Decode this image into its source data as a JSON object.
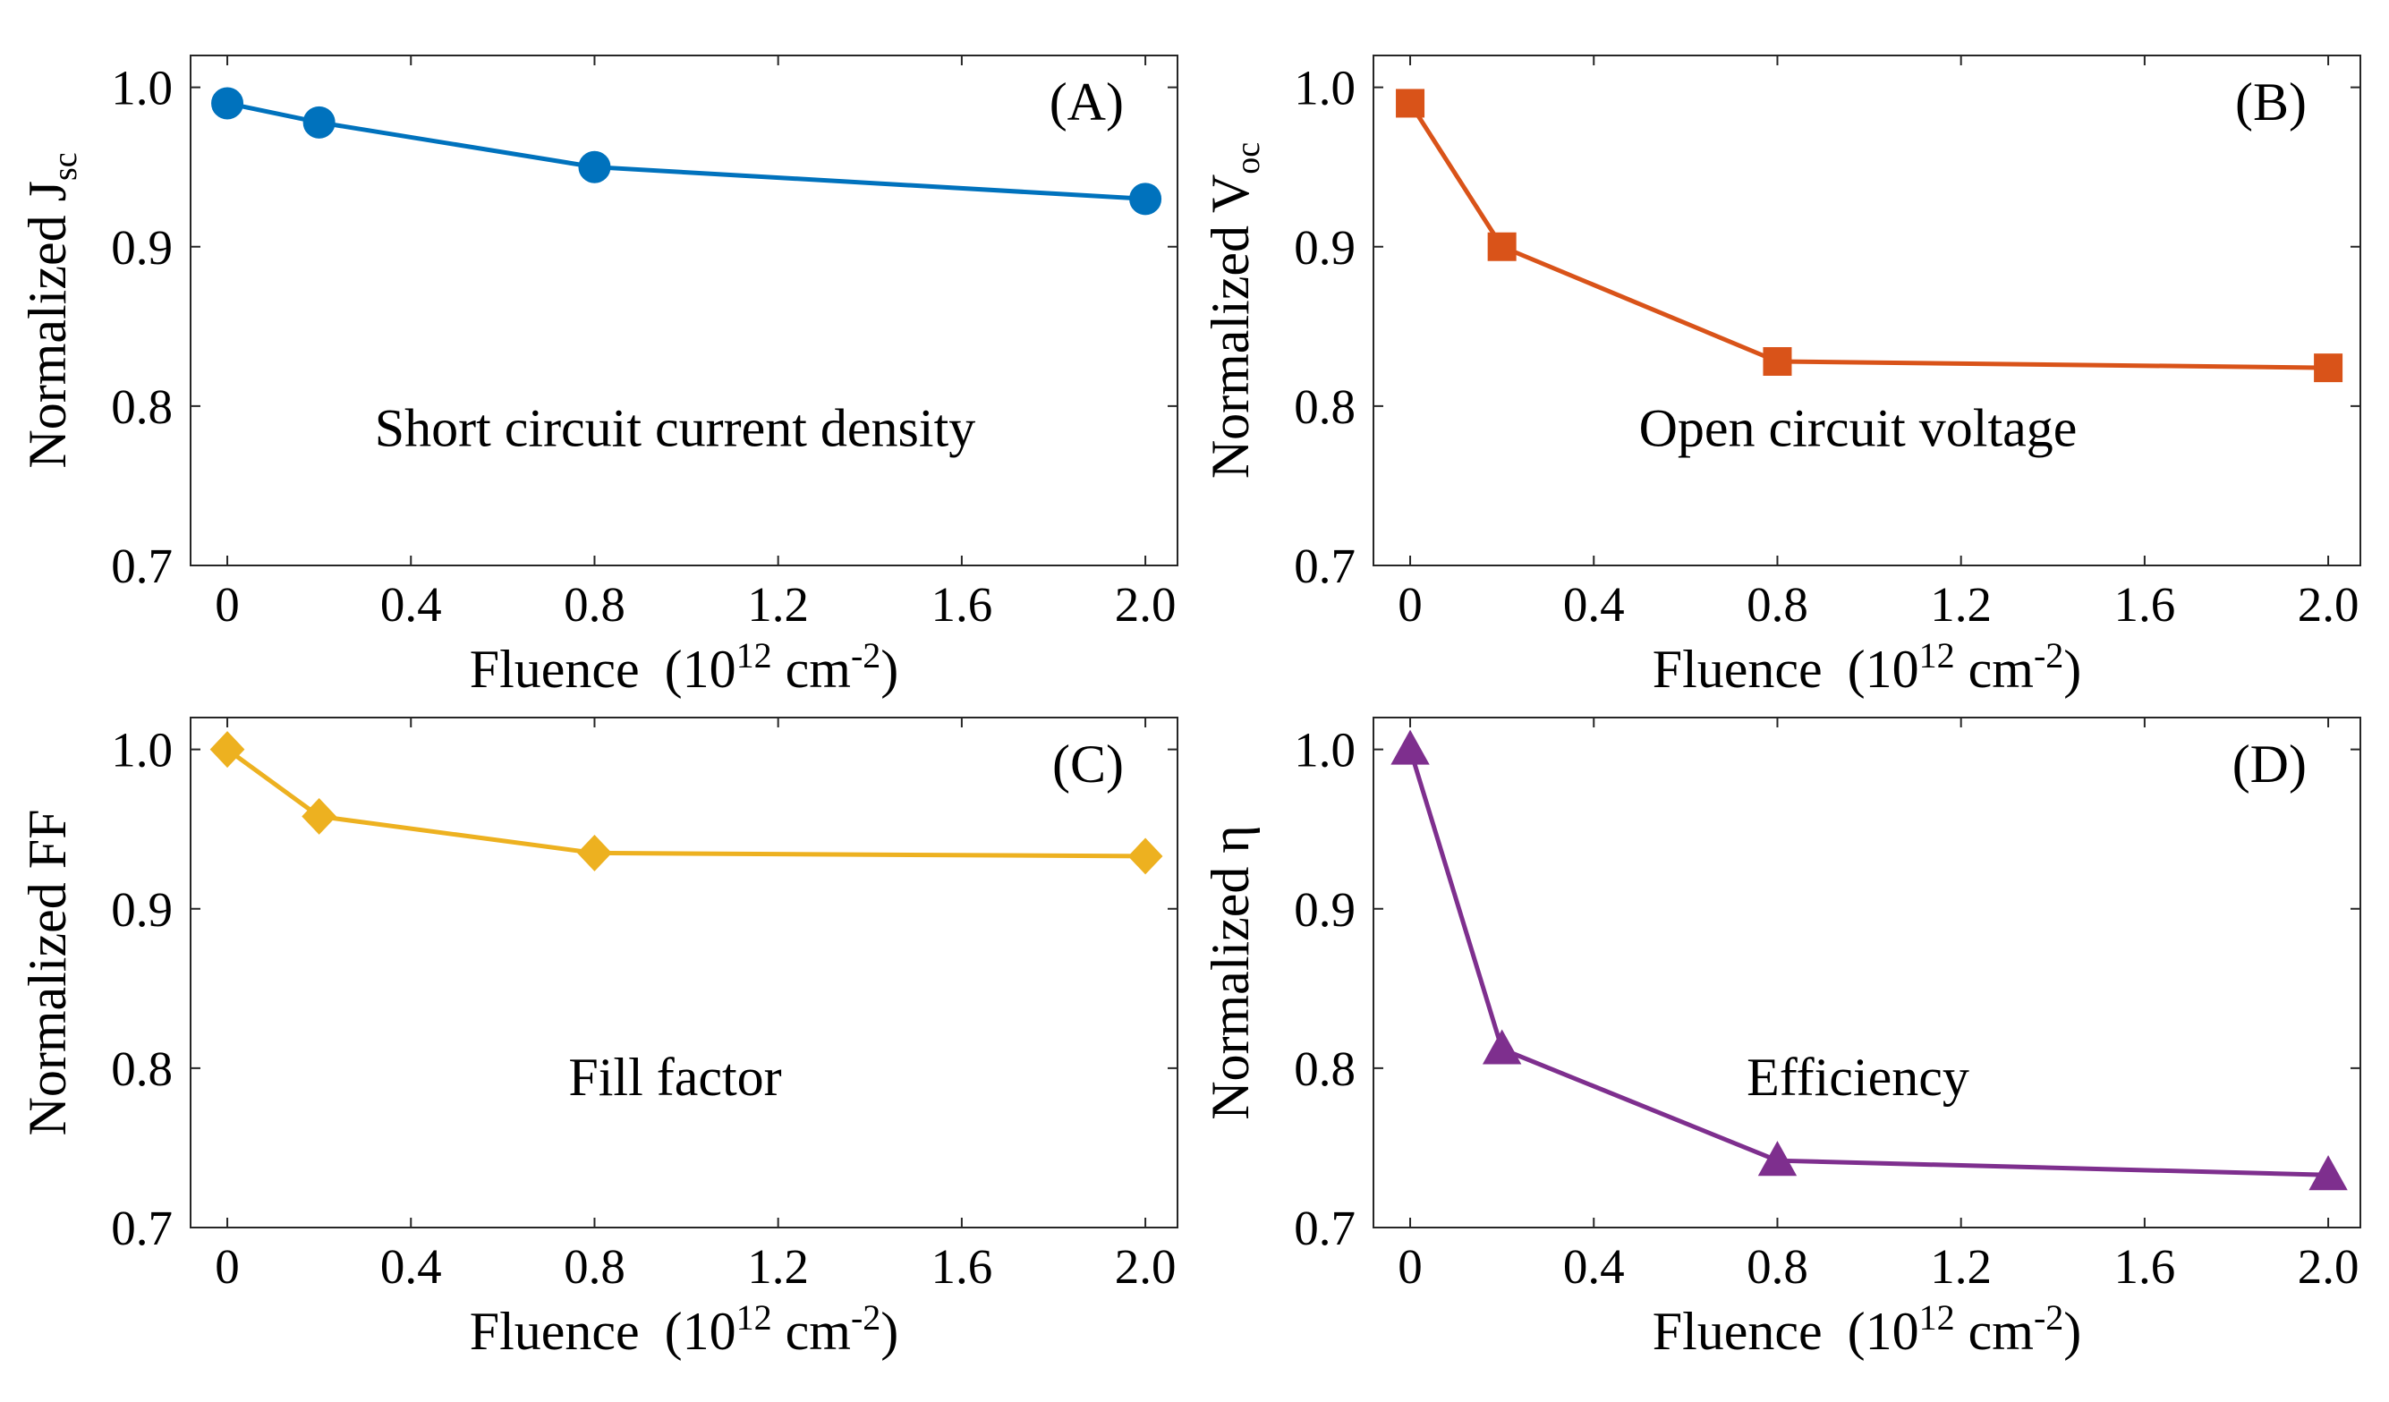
{
  "chart_data": [
    {
      "type": "line",
      "panel": "(A)",
      "annotation": "Short circuit current density",
      "xlabel": "Fluence",
      "xunit_open": "(10",
      "xunit_exp": "12",
      "xunit_mid": " cm",
      "xunit_exp2": "-2",
      "xunit_close": ")",
      "ylabel_main": "Normalized J",
      "ylabel_sub": "sc",
      "xlim": [
        -0.08,
        2.07
      ],
      "ylim": [
        0.7,
        1.02
      ],
      "xticks": [
        0,
        0.4,
        0.8,
        1.2,
        1.6,
        2.0
      ],
      "xtick_labels": [
        "0",
        "0.4",
        "0.8",
        "1.2",
        "1.6",
        "2.0"
      ],
      "yticks": [
        0.7,
        0.8,
        0.9,
        1.0
      ],
      "ytick_labels": [
        "0.7",
        "0.8",
        "0.9",
        "1.0"
      ],
      "x": [
        0,
        0.2,
        0.8,
        2.0
      ],
      "y": [
        0.99,
        0.978,
        0.95,
        0.93
      ],
      "color": "#0072BD",
      "marker": "circle"
    },
    {
      "type": "line",
      "panel": "(B)",
      "annotation": "Open circuit voltage",
      "xlabel": "Fluence",
      "xunit_open": "(10",
      "xunit_exp": "12",
      "xunit_mid": " cm",
      "xunit_exp2": "-2",
      "xunit_close": ")",
      "ylabel_main": "Normalized V",
      "ylabel_sub": "oc",
      "xlim": [
        -0.08,
        2.07
      ],
      "ylim": [
        0.7,
        1.02
      ],
      "xticks": [
        0,
        0.4,
        0.8,
        1.2,
        1.6,
        2.0
      ],
      "xtick_labels": [
        "0",
        "0.4",
        "0.8",
        "1.2",
        "1.6",
        "2.0"
      ],
      "yticks": [
        0.7,
        0.8,
        0.9,
        1.0
      ],
      "ytick_labels": [
        "0.7",
        "0.8",
        "0.9",
        "1.0"
      ],
      "x": [
        0,
        0.2,
        0.8,
        2.0
      ],
      "y": [
        0.99,
        0.9,
        0.828,
        0.824
      ],
      "color": "#D95319",
      "marker": "square"
    },
    {
      "type": "line",
      "panel": "(C)",
      "annotation": "Fill factor",
      "xlabel": "Fluence",
      "xunit_open": "(10",
      "xunit_exp": "12",
      "xunit_mid": " cm",
      "xunit_exp2": "-2",
      "xunit_close": ")",
      "ylabel_main": "Normalized FF",
      "ylabel_sub": "",
      "xlim": [
        -0.08,
        2.07
      ],
      "ylim": [
        0.7,
        1.02
      ],
      "xticks": [
        0,
        0.4,
        0.8,
        1.2,
        1.6,
        2.0
      ],
      "xtick_labels": [
        "0",
        "0.4",
        "0.8",
        "1.2",
        "1.6",
        "2.0"
      ],
      "yticks": [
        0.7,
        0.8,
        0.9,
        1.0
      ],
      "ytick_labels": [
        "0.7",
        "0.8",
        "0.9",
        "1.0"
      ],
      "x": [
        0,
        0.2,
        0.8,
        2.0
      ],
      "y": [
        1.0,
        0.958,
        0.935,
        0.933
      ],
      "color": "#EDB120",
      "marker": "diamond"
    },
    {
      "type": "line",
      "panel": "(D)",
      "annotation": "Efficiency",
      "xlabel": "Fluence",
      "xunit_open": "(10",
      "xunit_exp": "12",
      "xunit_mid": " cm",
      "xunit_exp2": "-2",
      "xunit_close": ")",
      "ylabel_main": "Normalized η",
      "ylabel_sub": "",
      "xlim": [
        -0.08,
        2.07
      ],
      "ylim": [
        0.7,
        1.02
      ],
      "xticks": [
        0,
        0.4,
        0.8,
        1.2,
        1.6,
        2.0
      ],
      "xtick_labels": [
        "0",
        "0.4",
        "0.8",
        "1.2",
        "1.6",
        "2.0"
      ],
      "yticks": [
        0.7,
        0.8,
        0.9,
        1.0
      ],
      "ytick_labels": [
        "0.7",
        "0.8",
        "0.9",
        "1.0"
      ],
      "x": [
        0,
        0.2,
        0.8,
        2.0
      ],
      "y": [
        1.0,
        0.812,
        0.742,
        0.733
      ],
      "color": "#7E2F8E",
      "marker": "triangle"
    }
  ]
}
